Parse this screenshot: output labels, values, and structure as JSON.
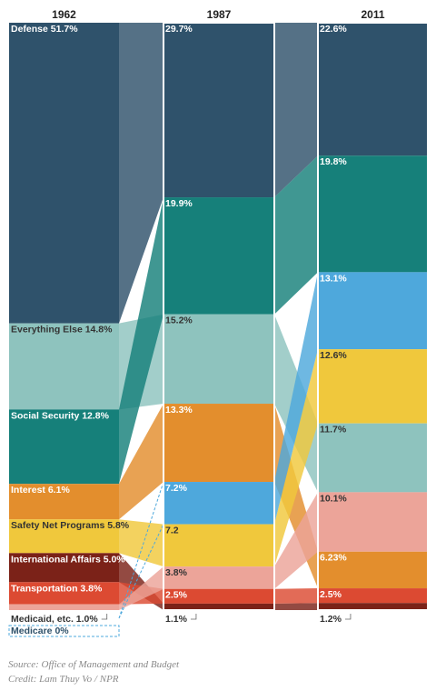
{
  "chart_data": {
    "type": "bar",
    "subtype": "stacked-100-with-flows",
    "years": [
      "1962",
      "1987",
      "2011"
    ],
    "series": [
      {
        "name": "Defense",
        "color": "#2f526b",
        "values": [
          51.7,
          29.7,
          22.6
        ],
        "labels": [
          "Defense 51.7%",
          "29.7%",
          "22.6%"
        ]
      },
      {
        "name": "Everything Else",
        "color": "#8ec3be",
        "values": [
          14.8,
          15.2,
          11.7
        ],
        "labels": [
          "Everything Else 14.8%",
          "15.2%",
          "11.7%"
        ]
      },
      {
        "name": "Social Security",
        "color": "#16807a",
        "values": [
          12.8,
          19.9,
          19.8
        ],
        "labels": [
          "Social Security 12.8%",
          "19.9%",
          "19.8%"
        ]
      },
      {
        "name": "Interest",
        "color": "#e38e2d",
        "values": [
          6.1,
          13.3,
          6.23
        ],
        "labels": [
          "Interest 6.1%",
          "13.3%",
          "6.23%"
        ]
      },
      {
        "name": "Safety Net Programs",
        "color": "#f0c83c",
        "values": [
          5.8,
          7.2,
          12.6
        ],
        "labels": [
          "Safety Net Programs 5.8%",
          "7.2",
          "12.6%"
        ]
      },
      {
        "name": "International Affairs",
        "color": "#7b2218",
        "values": [
          5.0,
          1.1,
          1.2
        ],
        "labels": [
          "International Affairs 5.0%",
          "1.1%",
          "1.2%"
        ]
      },
      {
        "name": "Transportation",
        "color": "#dc4a32",
        "values": [
          3.8,
          2.5,
          2.5
        ],
        "labels": [
          "Transportation 3.8%",
          "2.5%",
          "2.5%"
        ]
      },
      {
        "name": "Medicaid, etc.",
        "color": "#eca499",
        "values": [
          1.0,
          3.8,
          10.1
        ],
        "labels": [
          "Medicaid, etc. 1.0%",
          "3.8%",
          "10.1%"
        ]
      },
      {
        "name": "Medicare",
        "color": "#4ea8dc",
        "values": [
          0,
          7.2,
          13.1
        ],
        "labels": [
          "Medicare 0%",
          "7.2%",
          "13.1%"
        ]
      }
    ],
    "orders": [
      [
        "Defense",
        "Everything Else",
        "Social Security",
        "Interest",
        "Safety Net Programs",
        "International Affairs",
        "Transportation",
        "Medicaid, etc.",
        "Medicare"
      ],
      [
        "Defense",
        "Social Security",
        "Everything Else",
        "Interest",
        "Medicare",
        "Safety Net Programs",
        "Medicaid, etc.",
        "Transportation",
        "International Affairs"
      ],
      [
        "Defense",
        "Social Security",
        "Medicare",
        "Safety Net Programs",
        "Everything Else",
        "Medicaid, etc.",
        "Interest",
        "Transportation",
        "International Affairs"
      ]
    ]
  },
  "notes": {
    "source": "Source: Office of Management and Budget",
    "credit": "Credit: Lam Thuy Vo / NPR"
  }
}
